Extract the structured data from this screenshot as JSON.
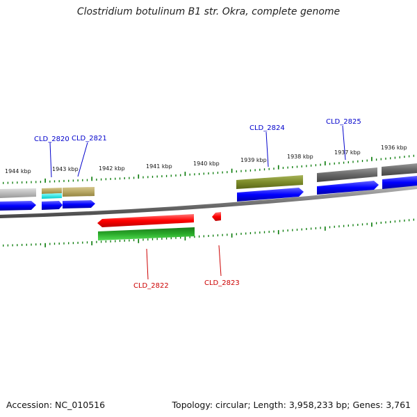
{
  "title": "Clostridium botulinum B1 str. Okra, complete genome",
  "footer": {
    "accession_label": "Accession:",
    "accession": "NC_010516",
    "topology_label": "Topology:",
    "topology": "circular",
    "length_label": "Length:",
    "length": "3,958,233 bp",
    "genes_label": "Genes:",
    "genes": "3,761"
  },
  "colors": {
    "forward_label": "#0000cc",
    "reverse_label": "#cc0000",
    "cds_forward": "#0000ff",
    "cds_reverse": "#ff0000",
    "tick": "#007700",
    "backbone": "#777777"
  },
  "ruler": {
    "labels": [
      "1944 kbp",
      "1943 kbp",
      "1942 kbp",
      "1941 kbp",
      "1940 kbp",
      "1939 kbp",
      "1938 kbp",
      "1937 kbp",
      "1936 kbp"
    ]
  },
  "genes": [
    {
      "locus": "CLD_2820",
      "strand": "forward"
    },
    {
      "locus": "CLD_2821",
      "strand": "forward"
    },
    {
      "locus": "CLD_2822",
      "strand": "reverse"
    },
    {
      "locus": "CLD_2823",
      "strand": "reverse"
    },
    {
      "locus": "CLD_2824",
      "strand": "forward"
    },
    {
      "locus": "CLD_2825",
      "strand": "forward"
    }
  ]
}
